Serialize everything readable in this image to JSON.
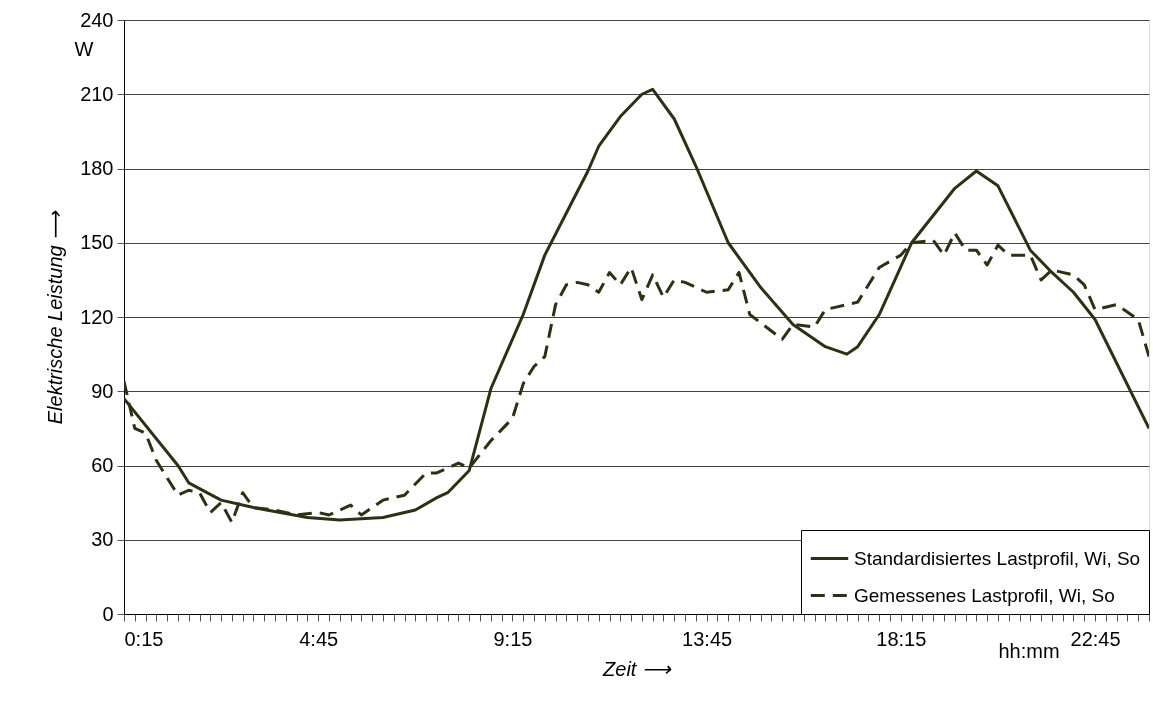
{
  "chart_data": {
    "type": "line",
    "xlabel": "Zeit ⟶",
    "ylabel": "Elektrische Leistung ⟶",
    "annotations": [
      "W",
      "hh:mm"
    ],
    "xlim": [
      0.25,
      24
    ],
    "ylim": [
      0,
      240
    ],
    "yticks": [
      0,
      30,
      60,
      90,
      120,
      150,
      180,
      210,
      240
    ],
    "xticks": [
      {
        "value": 0.25,
        "label": "0:15"
      },
      {
        "value": 0.5,
        "label": null
      },
      {
        "value": 0.75,
        "label": null
      },
      {
        "value": 1,
        "label": null
      },
      {
        "value": 1.25,
        "label": null
      },
      {
        "value": 1.5,
        "label": null
      },
      {
        "value": 1.75,
        "label": null
      },
      {
        "value": 2,
        "label": null
      },
      {
        "value": 2.25,
        "label": null
      },
      {
        "value": 2.5,
        "label": null
      },
      {
        "value": 2.75,
        "label": null
      },
      {
        "value": 3,
        "label": null
      },
      {
        "value": 3.25,
        "label": null
      },
      {
        "value": 3.5,
        "label": null
      },
      {
        "value": 3.75,
        "label": null
      },
      {
        "value": 4,
        "label": null
      },
      {
        "value": 4.25,
        "label": null
      },
      {
        "value": 4.5,
        "label": null
      },
      {
        "value": 4.75,
        "label": "4:45"
      },
      {
        "value": 5,
        "label": null
      },
      {
        "value": 5.25,
        "label": null
      },
      {
        "value": 5.5,
        "label": null
      },
      {
        "value": 5.75,
        "label": null
      },
      {
        "value": 6,
        "label": null
      },
      {
        "value": 6.25,
        "label": null
      },
      {
        "value": 6.5,
        "label": null
      },
      {
        "value": 6.75,
        "label": null
      },
      {
        "value": 7,
        "label": null
      },
      {
        "value": 7.25,
        "label": null
      },
      {
        "value": 7.5,
        "label": null
      },
      {
        "value": 7.75,
        "label": null
      },
      {
        "value": 8,
        "label": null
      },
      {
        "value": 8.25,
        "label": null
      },
      {
        "value": 8.5,
        "label": null
      },
      {
        "value": 8.75,
        "label": null
      },
      {
        "value": 9,
        "label": null
      },
      {
        "value": 9.25,
        "label": "9:15"
      },
      {
        "value": 9.5,
        "label": null
      },
      {
        "value": 9.75,
        "label": null
      },
      {
        "value": 10,
        "label": null
      },
      {
        "value": 10.25,
        "label": null
      },
      {
        "value": 10.5,
        "label": null
      },
      {
        "value": 10.75,
        "label": null
      },
      {
        "value": 11,
        "label": null
      },
      {
        "value": 11.25,
        "label": null
      },
      {
        "value": 11.5,
        "label": null
      },
      {
        "value": 11.75,
        "label": null
      },
      {
        "value": 12,
        "label": null
      },
      {
        "value": 12.25,
        "label": null
      },
      {
        "value": 12.5,
        "label": null
      },
      {
        "value": 12.75,
        "label": null
      },
      {
        "value": 13,
        "label": null
      },
      {
        "value": 13.25,
        "label": null
      },
      {
        "value": 13.5,
        "label": null
      },
      {
        "value": 13.75,
        "label": "13:45"
      },
      {
        "value": 14,
        "label": null
      },
      {
        "value": 14.25,
        "label": null
      },
      {
        "value": 14.5,
        "label": null
      },
      {
        "value": 14.75,
        "label": null
      },
      {
        "value": 15,
        "label": null
      },
      {
        "value": 15.25,
        "label": null
      },
      {
        "value": 15.5,
        "label": null
      },
      {
        "value": 15.75,
        "label": null
      },
      {
        "value": 16,
        "label": null
      },
      {
        "value": 16.25,
        "label": null
      },
      {
        "value": 16.5,
        "label": null
      },
      {
        "value": 16.75,
        "label": null
      },
      {
        "value": 17,
        "label": null
      },
      {
        "value": 17.25,
        "label": null
      },
      {
        "value": 17.5,
        "label": null
      },
      {
        "value": 17.75,
        "label": null
      },
      {
        "value": 18,
        "label": null
      },
      {
        "value": 18.25,
        "label": "18:15"
      },
      {
        "value": 18.5,
        "label": null
      },
      {
        "value": 18.75,
        "label": null
      },
      {
        "value": 19,
        "label": null
      },
      {
        "value": 19.25,
        "label": null
      },
      {
        "value": 19.5,
        "label": null
      },
      {
        "value": 19.75,
        "label": null
      },
      {
        "value": 20,
        "label": null
      },
      {
        "value": 20.25,
        "label": null
      },
      {
        "value": 20.5,
        "label": null
      },
      {
        "value": 20.75,
        "label": null
      },
      {
        "value": 21,
        "label": null
      },
      {
        "value": 21.25,
        "label": null
      },
      {
        "value": 21.5,
        "label": null
      },
      {
        "value": 21.75,
        "label": null
      },
      {
        "value": 22,
        "label": null
      },
      {
        "value": 22.25,
        "label": null
      },
      {
        "value": 22.5,
        "label": null
      },
      {
        "value": 22.75,
        "label": "22:45"
      },
      {
        "value": 23,
        "label": null
      },
      {
        "value": 23.25,
        "label": null
      },
      {
        "value": 23.5,
        "label": null
      },
      {
        "value": 23.75,
        "label": null
      },
      {
        "value": 24,
        "label": null
      }
    ],
    "grid": "y",
    "legend": "bottom right",
    "marker": "none",
    "series": [
      {
        "name": "Standardisiertes Lastprofil, Wi, So",
        "color": "#2f2f14",
        "line_style": "solid",
        "x": [
          0.25,
          1.5,
          1.75,
          2.5,
          3.25,
          4.5,
          5.25,
          6.25,
          7,
          7.5,
          7.75,
          8.25,
          8.75,
          9.5,
          10,
          10.5,
          11,
          11.25,
          11.75,
          12.25,
          12.5,
          13,
          13.5,
          14.25,
          15,
          15.75,
          16.5,
          17,
          17.25,
          17.75,
          18.5,
          19.5,
          20,
          20.5,
          21.25,
          21.75,
          22.25,
          22.75,
          24
        ],
        "values": [
          87,
          60,
          53,
          46,
          43,
          39,
          38,
          39,
          42,
          47,
          49,
          58,
          91,
          121,
          145,
          162,
          179,
          189,
          201,
          210,
          212,
          200,
          181,
          150,
          132,
          117,
          108,
          105,
          108,
          121,
          150,
          172,
          179,
          173,
          147,
          138,
          130,
          119,
          75
        ]
      },
      {
        "name": "Gemessenes Lastprofil, Wi, So",
        "color": "#2f2f14",
        "line_style": "dashed",
        "x": [
          0.25,
          0.5,
          0.75,
          1,
          1.5,
          1.75,
          2,
          2.25,
          2.5,
          2.75,
          3,
          3.25,
          3.75,
          4.25,
          4.75,
          5,
          5.5,
          5.75,
          6.25,
          6.75,
          7.25,
          7.5,
          8,
          8.25,
          8.75,
          9.25,
          9.5,
          9.75,
          10,
          10.25,
          10.5,
          10.75,
          11,
          11.25,
          11.5,
          11.75,
          12,
          12.25,
          12.5,
          12.75,
          13,
          13.25,
          13.75,
          14.25,
          14.5,
          14.75,
          15.5,
          15.75,
          16.25,
          16.5,
          16.75,
          17.25,
          17.75,
          18.25,
          18.5,
          19,
          19.25,
          19.5,
          19.75,
          20,
          20.25,
          20.5,
          20.75,
          21.25,
          21.5,
          21.75,
          22.25,
          22.5,
          22.75,
          23.25,
          23.75,
          24
        ],
        "values": [
          94,
          75,
          73,
          62,
          48,
          50,
          49,
          41,
          45,
          37,
          49,
          43,
          42,
          40,
          41,
          40,
          44,
          40,
          46,
          48,
          57,
          57,
          61,
          59,
          70,
          79,
          93,
          100,
          104,
          125,
          133,
          134,
          133,
          130,
          138,
          133,
          140,
          127,
          137,
          128,
          135,
          134,
          130,
          131,
          138,
          121,
          111,
          117,
          116,
          123,
          124,
          126,
          140,
          145,
          150,
          151,
          145,
          154,
          147,
          147,
          141,
          149,
          145,
          145,
          135,
          139,
          137,
          133,
          123,
          125,
          119,
          104
        ]
      }
    ]
  }
}
